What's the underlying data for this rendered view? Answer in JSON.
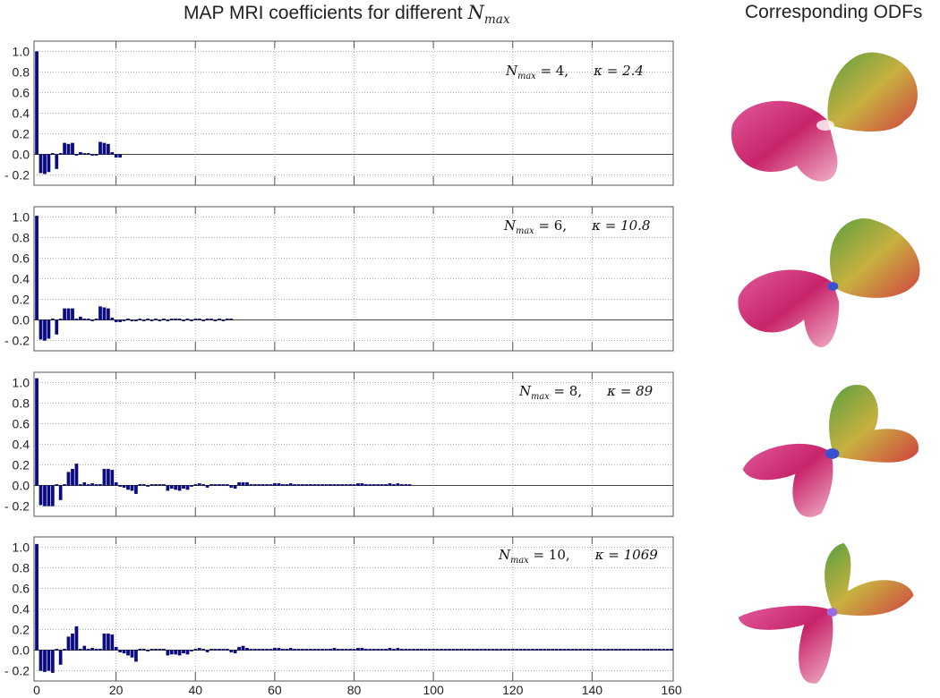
{
  "title": {
    "main": "MAP MRI coefficients for different ",
    "var": "N",
    "sub": "max"
  },
  "odf_title": "Corresponding ODFs",
  "colors": {
    "bar": "#0a0a8c",
    "bar_edge": "#000040",
    "grid": "#b0b0b0",
    "frame": "#555555"
  },
  "chart_data": [
    {
      "type": "bar",
      "annotation": {
        "var": "N",
        "sub": "max",
        "nmax": "= 4,",
        "kappa": "κ = 2.4"
      },
      "ylim": [
        -0.3,
        1.1
      ],
      "xlim": [
        0,
        160
      ],
      "yticks": [
        "1.0",
        "0.8",
        "0.6",
        "0.4",
        "0.2",
        "0.0",
        "- 0.2"
      ],
      "ytick_values": [
        1.0,
        0.8,
        0.6,
        0.4,
        0.2,
        0.0,
        -0.2
      ],
      "values": [
        1.0,
        -0.18,
        -0.19,
        -0.17,
        0,
        -0.14,
        0,
        0.11,
        0.1,
        0.11,
        -0.01,
        0.02,
        0,
        0.01,
        -0.01,
        -0.01,
        0.12,
        0.11,
        0.1,
        0.02,
        -0.03,
        -0.03
      ]
    },
    {
      "type": "bar",
      "annotation": {
        "var": "N",
        "sub": "max",
        "nmax": "= 6,",
        "kappa": "κ = 10.8"
      },
      "ylim": [
        -0.3,
        1.1
      ],
      "xlim": [
        0,
        160
      ],
      "yticks": [
        "1.0",
        "0.8",
        "0.6",
        "0.4",
        "0.2",
        "0.0",
        "- 0.2"
      ],
      "ytick_values": [
        1.0,
        0.8,
        0.6,
        0.4,
        0.2,
        0.0,
        -0.2
      ],
      "values": [
        1.01,
        -0.19,
        -0.2,
        -0.18,
        0,
        -0.14,
        0,
        0.11,
        0.11,
        0.11,
        0,
        0.03,
        0,
        0.01,
        -0.01,
        0,
        0.13,
        0.12,
        0.11,
        0.02,
        -0.02,
        -0.02,
        -0.01,
        0,
        -0.01,
        -0.01,
        0,
        -0.01,
        0.01,
        -0.01,
        0,
        -0.01,
        0,
        -0.01,
        0,
        0,
        0,
        -0.01,
        0.01,
        -0.01,
        0,
        0,
        -0.01,
        0,
        0.01,
        -0.01,
        0,
        -0.01,
        0,
        0.01
      ]
    },
    {
      "type": "bar",
      "annotation": {
        "var": "N",
        "sub": "max",
        "nmax": "= 8,",
        "kappa": "κ = 89"
      },
      "ylim": [
        -0.3,
        1.1
      ],
      "xlim": [
        0,
        160
      ],
      "yticks": [
        "1.0",
        "0.8",
        "0.6",
        "0.4",
        "0.2",
        "0.0",
        "- 0.2"
      ],
      "ytick_values": [
        1.0,
        0.8,
        0.6,
        0.4,
        0.2,
        0.0,
        -0.2
      ],
      "values": [
        1.04,
        -0.19,
        -0.2,
        -0.2,
        -0.2,
        0.01,
        -0.14,
        0,
        0.13,
        0.16,
        0.21,
        0,
        0.03,
        0,
        0.02,
        0,
        0,
        0.16,
        0.16,
        0.15,
        0.03,
        -0.01,
        -0.02,
        -0.04,
        -0.05,
        -0.08,
        0,
        0.01,
        -0.01,
        0.01,
        0.01,
        0,
        0,
        -0.05,
        -0.03,
        -0.04,
        -0.05,
        -0.03,
        -0.04,
        -0.01,
        0,
        0.02,
        0,
        -0.02,
        0,
        0,
        0,
        0.01,
        0,
        -0.02,
        -0.03,
        0.03,
        0.03,
        0.03,
        0,
        0,
        0,
        0,
        0,
        0.01,
        0.02,
        0.02,
        0.01,
        0.01,
        0.02,
        0.01,
        0.01,
        0,
        0,
        0,
        0.01,
        0.01,
        0,
        0,
        0.01,
        0.01,
        0,
        0.01,
        0,
        0,
        0,
        0.02,
        0.02,
        0.01,
        0.01,
        0,
        0,
        0.01,
        0.01,
        0.02,
        0.01,
        0.02,
        0,
        0,
        0.01
      ]
    },
    {
      "type": "bar",
      "annotation": {
        "var": "N",
        "sub": "max",
        "nmax": "= 10,",
        "kappa": "κ = 1069"
      },
      "ylim": [
        -0.3,
        1.1
      ],
      "xlim": [
        0,
        160
      ],
      "yticks": [
        "1.0",
        "0.8",
        "0.6",
        "0.4",
        "0.2",
        "0.0",
        "- 0.2"
      ],
      "ytick_values": [
        1.0,
        0.8,
        0.6,
        0.4,
        0.2,
        0.0,
        -0.2
      ],
      "xticks": [
        "0",
        "20",
        "40",
        "60",
        "80",
        "100",
        "120",
        "140",
        "160"
      ],
      "xtick_values": [
        0,
        20,
        40,
        60,
        80,
        100,
        120,
        140,
        160
      ],
      "values": [
        1.03,
        -0.2,
        -0.21,
        -0.2,
        -0.22,
        0.01,
        -0.14,
        0,
        0.13,
        0.16,
        0.23,
        0,
        0.04,
        0,
        0.02,
        0,
        0,
        0.16,
        0.16,
        0.15,
        0.03,
        -0.02,
        -0.03,
        -0.05,
        -0.07,
        -0.11,
        0,
        0.01,
        -0.01,
        0.01,
        0.01,
        0,
        0,
        -0.05,
        -0.04,
        -0.04,
        -0.05,
        -0.03,
        -0.04,
        -0.01,
        0,
        0.02,
        0,
        -0.02,
        0,
        0,
        0.01,
        0.01,
        0,
        -0.02,
        -0.03,
        0.03,
        0.04,
        0.02,
        0,
        0,
        0,
        0.01,
        0,
        0.01,
        0.02,
        0.02,
        0.01,
        0.01,
        0.02,
        0.01,
        0.01,
        0,
        0,
        0.01,
        0.01,
        0.01,
        0,
        0,
        0.01,
        0.02,
        0,
        0.01,
        0,
        0,
        0,
        0.02,
        0.02,
        0.01,
        0.01,
        0,
        0,
        0.01,
        0.01,
        0.02,
        0.01,
        0.02,
        0,
        0,
        0.01,
        0.01,
        0,
        0.01,
        0.01,
        0,
        0.01,
        0,
        0.01,
        0.01,
        0,
        0.01,
        0,
        0,
        0.01,
        0.01,
        0,
        0.01,
        0,
        0.01,
        0,
        0.01,
        0.01,
        0,
        0,
        0.01,
        0,
        0.01,
        0.01,
        0,
        0.01,
        0,
        0,
        0.01,
        0.01,
        0,
        0.01,
        0,
        0.01,
        0,
        0.01,
        0,
        0,
        0.01,
        0.01,
        0,
        0.01,
        0,
        0.01,
        0.01,
        0,
        0,
        0.01,
        0,
        0.01,
        0,
        0.01,
        0,
        0.01,
        0,
        0.01,
        0,
        0.01,
        0,
        0.01,
        0,
        0.01
      ]
    }
  ]
}
